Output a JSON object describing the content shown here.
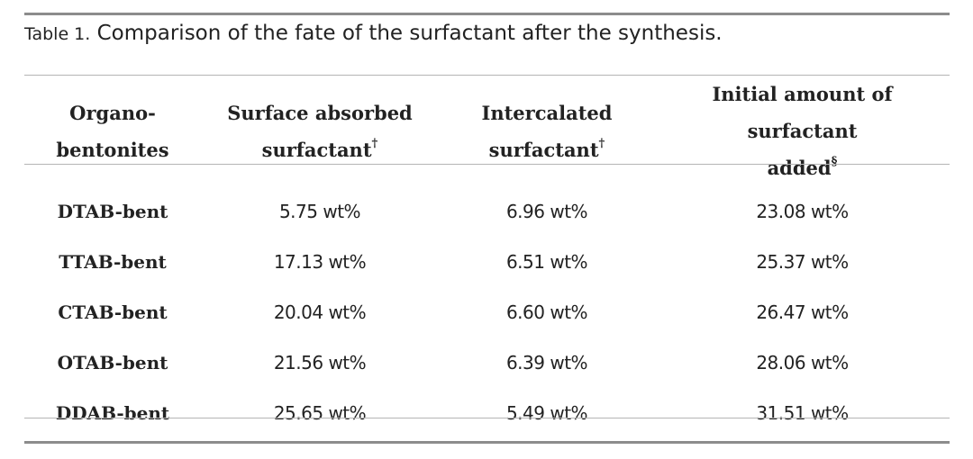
{
  "caption": {
    "label": "Table 1.",
    "text": " Comparison of the fate of the surfactant after the synthesis."
  },
  "table": {
    "headers": [
      {
        "line1": "Organo-",
        "line2": "bentonites",
        "mark": ""
      },
      {
        "line1": "Surface absorbed",
        "line2": "surfactant",
        "mark": "†"
      },
      {
        "line1": "Intercalated",
        "line2": "surfactant",
        "mark": "†"
      },
      {
        "line1": "Initial amount of surfactant",
        "line2": "added",
        "mark": "§"
      }
    ],
    "rows": [
      {
        "name": "DTAB-bent",
        "surface": "5.75 wt%",
        "intercalated": "6.96 wt%",
        "initial": "23.08 wt%"
      },
      {
        "name": "TTAB-bent",
        "surface": "17.13 wt%",
        "intercalated": "6.51 wt%",
        "initial": "25.37 wt%"
      },
      {
        "name": "CTAB-bent",
        "surface": "20.04 wt%",
        "intercalated": "6.60 wt%",
        "initial": "26.47 wt%"
      },
      {
        "name": "OTAB-bent",
        "surface": "21.56 wt%",
        "intercalated": "6.39 wt%",
        "initial": "28.06 wt%"
      },
      {
        "name": "DDAB-bent",
        "surface": "25.65 wt%",
        "intercalated": "5.49 wt%",
        "initial": "31.51 wt%"
      }
    ]
  }
}
